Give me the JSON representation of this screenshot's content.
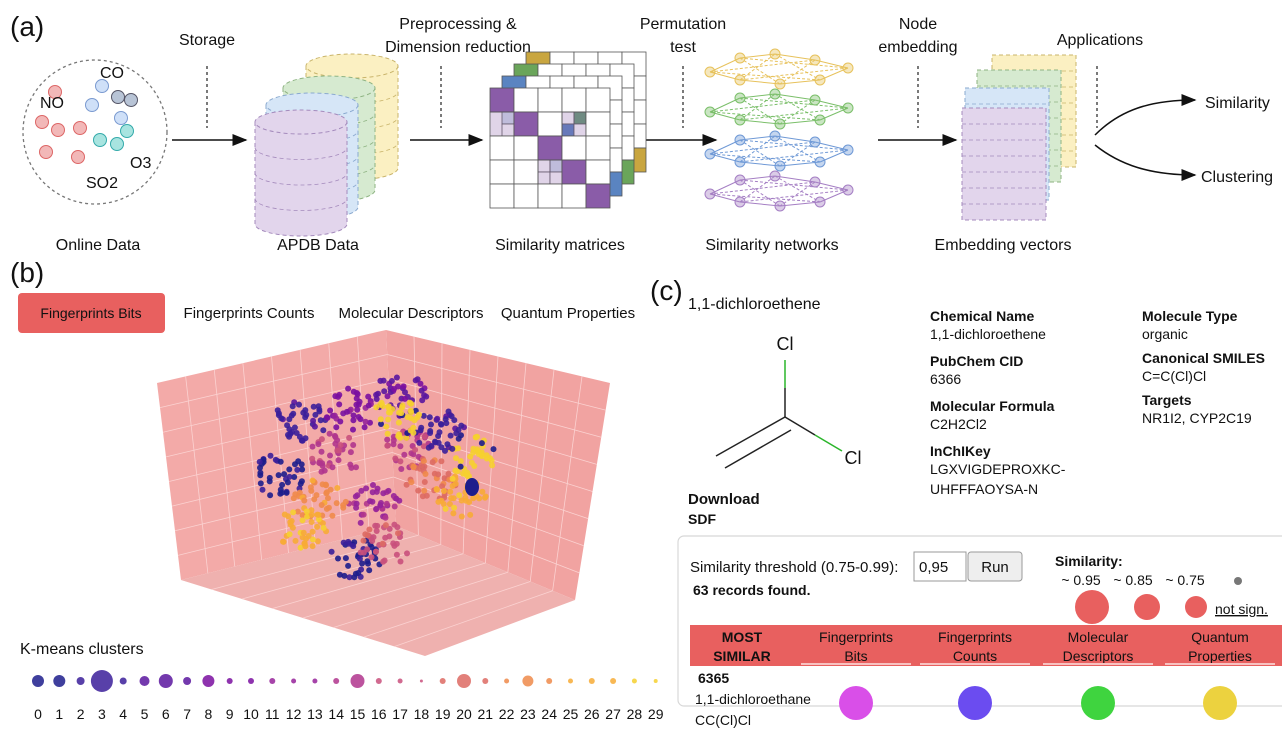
{
  "panel_a": {
    "label": "(a)",
    "gases": [
      "NO",
      "CO",
      "O3",
      "SO2"
    ],
    "steps": [
      "Online Data",
      "APDB Data",
      "Similarity matrices",
      "Similarity networks",
      "Embedding vectors"
    ],
    "transitions": [
      [
        "Storage"
      ],
      [
        "Preprocessing &",
        "Dimension reduction"
      ],
      [
        "Permutation",
        "test"
      ],
      [
        "Node",
        "embedding"
      ],
      [
        "Applications"
      ]
    ],
    "outputs": [
      "Similarity",
      "Clustering"
    ]
  },
  "panel_b": {
    "label": "(b)",
    "tabs": [
      "Fingerprints Bits",
      "Fingerprints Counts",
      "Molecular Descriptors",
      "Quantum Properties"
    ],
    "legend_title": "K-means clusters",
    "clusters": [
      "0",
      "1",
      "2",
      "3",
      "4",
      "5",
      "6",
      "7",
      "8",
      "9",
      "10",
      "11",
      "12",
      "13",
      "14",
      "15",
      "16",
      "17",
      "18",
      "19",
      "20",
      "21",
      "22",
      "23",
      "24",
      "25",
      "26",
      "27",
      "28",
      "29"
    ]
  },
  "panel_c": {
    "label": "(c)",
    "molecule_name": "1,1-dichloroethene",
    "atoms": [
      "Cl",
      "Cl"
    ],
    "fields_left": [
      {
        "label": "Chemical Name",
        "value": [
          "1,1-dichloroethene"
        ]
      },
      {
        "label": "PubChem CID",
        "value": [
          "6366"
        ]
      },
      {
        "label": "Molecular Formula",
        "value": [
          "C2H2Cl2"
        ]
      },
      {
        "label": "InChIKey",
        "value": [
          "LGXVIGDEPROXKC-",
          "UHFFFAOYSA-N"
        ]
      }
    ],
    "fields_right": [
      {
        "label": "Molecule Type",
        "value": [
          "organic"
        ]
      },
      {
        "label": "Canonical SMILES",
        "value": [
          "C=C(Cl)Cl"
        ]
      },
      {
        "label": "Targets",
        "value": [
          "NR1I2, CYP2C19"
        ]
      }
    ],
    "download": "Download",
    "download_link": "SDF",
    "threshold_label": "Similarity threshold (0.75-0.99):",
    "threshold_value": "0,95",
    "run_button": "Run",
    "records": "63 records found.",
    "similarity_title": "Similarity:",
    "similarity_levels": [
      "~ 0.95",
      "~ 0.85",
      "~ 0.75"
    ],
    "not_significant": "not sign.",
    "table_headers": [
      [
        "MOST",
        "SIMILAR"
      ],
      [
        "Fingerprints",
        "Bits"
      ],
      [
        "Fingerprints",
        "Counts"
      ],
      [
        "Molecular",
        "Descriptors"
      ],
      [
        "Quantum",
        "Properties"
      ]
    ],
    "result": {
      "cid": "6365",
      "name": "1,1-dichloroethane",
      "smiles": "CC(Cl)Cl"
    }
  }
}
